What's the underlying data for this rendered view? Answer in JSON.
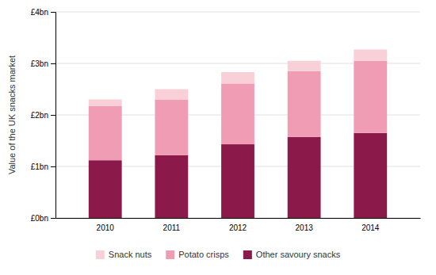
{
  "chart_data": {
    "type": "bar",
    "stacked": true,
    "categories": [
      "2010",
      "2011",
      "2012",
      "2013",
      "2014"
    ],
    "series": [
      {
        "name": "Other savoury snacks",
        "color": "#8B1A4A",
        "values": [
          1.12,
          1.22,
          1.43,
          1.57,
          1.65
        ]
      },
      {
        "name": "Potato crisps",
        "color": "#F09CB5",
        "values": [
          1.05,
          1.08,
          1.18,
          1.28,
          1.4
        ]
      },
      {
        "name": "Snack nuts",
        "color": "#F9D0D8",
        "values": [
          0.13,
          0.2,
          0.22,
          0.2,
          0.22
        ]
      }
    ],
    "ylabel": "Value of the UK snacks market",
    "ylim": [
      0,
      4
    ],
    "yticks": [
      {
        "value": 0,
        "label": "£0bn"
      },
      {
        "value": 1,
        "label": "£1bn"
      },
      {
        "value": 2,
        "label": "£2bn"
      },
      {
        "value": 3,
        "label": "£3bn"
      },
      {
        "value": 4,
        "label": "£4bn"
      }
    ],
    "grid": true,
    "legend": "bottom"
  }
}
